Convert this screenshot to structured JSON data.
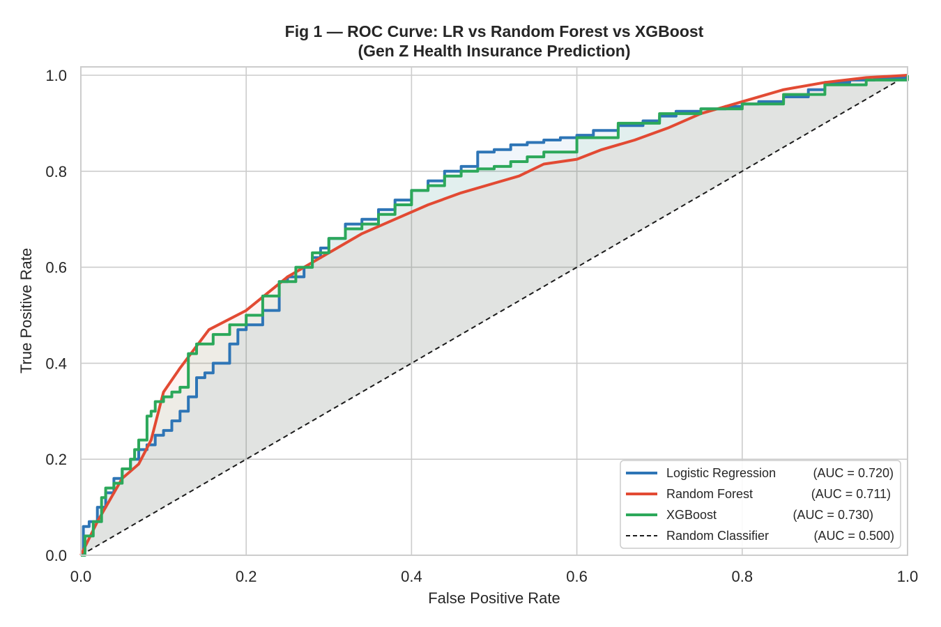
{
  "chart_data": {
    "type": "line",
    "title": "Fig 1 — ROC Curve: LR vs Random Forest vs XGBoost",
    "subtitle": "(Gen Z Health Insurance Prediction)",
    "xlabel": "False Positive Rate",
    "ylabel": "True Positive Rate",
    "xlim": [
      0.0,
      1.0
    ],
    "ylim": [
      0.0,
      1.0
    ],
    "xticks": [
      "0.0",
      "0.2",
      "0.4",
      "0.6",
      "0.8",
      "1.0"
    ],
    "yticks": [
      "0.0",
      "0.2",
      "0.4",
      "0.6",
      "0.8",
      "1.0"
    ],
    "grid": true,
    "legend_position": "lower-right",
    "series": [
      {
        "name": "Logistic Regression",
        "auc_text": "(AUC = 0.720)",
        "color": "#2e75b6",
        "style": "steps",
        "x": [
          0.0,
          0.003,
          0.01,
          0.02,
          0.03,
          0.04,
          0.05,
          0.06,
          0.07,
          0.08,
          0.09,
          0.1,
          0.11,
          0.12,
          0.13,
          0.14,
          0.15,
          0.16,
          0.18,
          0.19,
          0.2,
          0.22,
          0.24,
          0.25,
          0.27,
          0.28,
          0.29,
          0.3,
          0.32,
          0.34,
          0.36,
          0.38,
          0.4,
          0.42,
          0.44,
          0.46,
          0.48,
          0.5,
          0.52,
          0.54,
          0.56,
          0.58,
          0.6,
          0.62,
          0.65,
          0.68,
          0.7,
          0.72,
          0.75,
          0.78,
          0.8,
          0.82,
          0.85,
          0.88,
          0.9,
          0.93,
          0.96,
          1.0
        ],
        "y": [
          0.0,
          0.06,
          0.07,
          0.1,
          0.13,
          0.16,
          0.18,
          0.2,
          0.22,
          0.23,
          0.25,
          0.26,
          0.28,
          0.3,
          0.33,
          0.37,
          0.38,
          0.4,
          0.44,
          0.47,
          0.48,
          0.51,
          0.57,
          0.58,
          0.6,
          0.62,
          0.64,
          0.66,
          0.69,
          0.7,
          0.72,
          0.74,
          0.76,
          0.78,
          0.8,
          0.81,
          0.84,
          0.845,
          0.855,
          0.86,
          0.865,
          0.87,
          0.875,
          0.885,
          0.895,
          0.905,
          0.915,
          0.925,
          0.93,
          0.935,
          0.94,
          0.945,
          0.955,
          0.97,
          0.985,
          0.99,
          0.995,
          1.0
        ]
      },
      {
        "name": "Random Forest",
        "auc_text": "(AUC = 0.711)",
        "color": "#e24a33",
        "style": "line",
        "x": [
          0.0,
          0.02,
          0.05,
          0.07,
          0.085,
          0.1,
          0.12,
          0.155,
          0.2,
          0.25,
          0.28,
          0.31,
          0.34,
          0.38,
          0.42,
          0.46,
          0.5,
          0.53,
          0.56,
          0.6,
          0.63,
          0.67,
          0.71,
          0.75,
          0.8,
          0.85,
          0.9,
          0.95,
          1.0
        ],
        "y": [
          0.0,
          0.07,
          0.16,
          0.19,
          0.24,
          0.34,
          0.39,
          0.47,
          0.51,
          0.58,
          0.61,
          0.64,
          0.67,
          0.7,
          0.73,
          0.755,
          0.775,
          0.79,
          0.815,
          0.825,
          0.845,
          0.865,
          0.89,
          0.92,
          0.945,
          0.97,
          0.985,
          0.995,
          1.0
        ]
      },
      {
        "name": "XGBoost",
        "auc_text": "(AUC = 0.730)",
        "color": "#2ca85a",
        "style": "steps",
        "x": [
          0.0,
          0.005,
          0.015,
          0.025,
          0.03,
          0.04,
          0.05,
          0.06,
          0.065,
          0.07,
          0.08,
          0.085,
          0.09,
          0.1,
          0.11,
          0.12,
          0.13,
          0.14,
          0.16,
          0.18,
          0.2,
          0.22,
          0.24,
          0.26,
          0.28,
          0.3,
          0.32,
          0.34,
          0.36,
          0.38,
          0.4,
          0.42,
          0.44,
          0.46,
          0.48,
          0.5,
          0.52,
          0.54,
          0.56,
          0.6,
          0.65,
          0.7,
          0.75,
          0.8,
          0.85,
          0.9,
          0.95,
          1.0
        ],
        "y": [
          0.0,
          0.04,
          0.07,
          0.12,
          0.14,
          0.15,
          0.18,
          0.2,
          0.22,
          0.24,
          0.29,
          0.3,
          0.32,
          0.33,
          0.34,
          0.35,
          0.42,
          0.44,
          0.46,
          0.48,
          0.5,
          0.54,
          0.57,
          0.6,
          0.63,
          0.66,
          0.68,
          0.69,
          0.71,
          0.73,
          0.76,
          0.77,
          0.79,
          0.8,
          0.805,
          0.81,
          0.82,
          0.83,
          0.84,
          0.87,
          0.9,
          0.92,
          0.93,
          0.94,
          0.96,
          0.98,
          0.99,
          1.0
        ]
      },
      {
        "name": "Random Classifier",
        "auc_text": "(AUC = 0.500)",
        "color": "#1a1a1a",
        "style": "dashed",
        "x": [
          0.0,
          1.0
        ],
        "y": [
          0.0,
          1.0
        ]
      }
    ]
  }
}
